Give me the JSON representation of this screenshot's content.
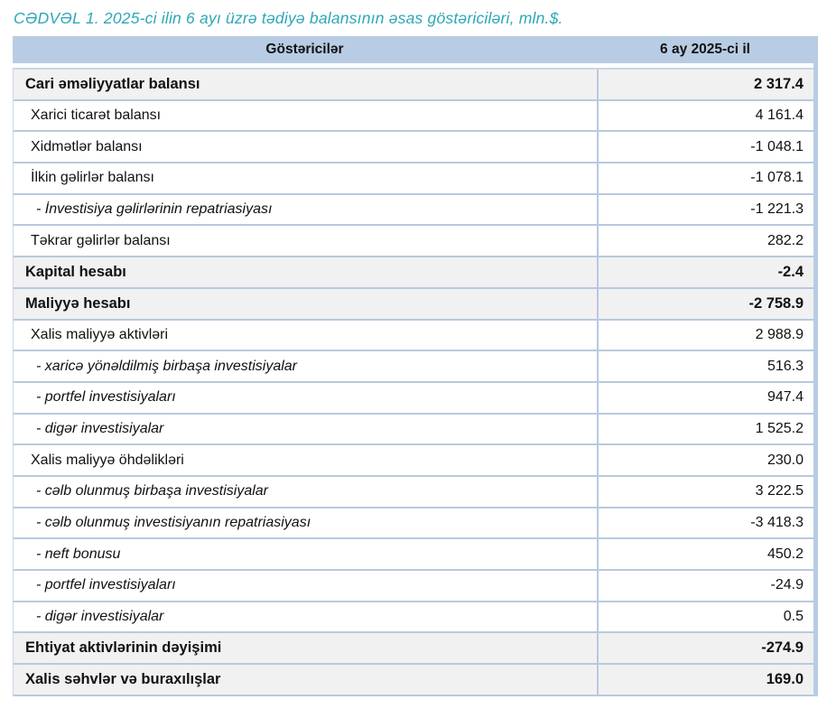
{
  "page_title": "CƏDVƏL 1. 2025-ci ilin 6 ayı üzrə tədiyə balansının əsas göstəriciləri, mln.$.",
  "colors": {
    "title_text": "#2EA7B7",
    "header_bg": "#B8CCE4",
    "shaded_row_bg": "#F1F1F1",
    "border": "#B8C9DF",
    "text": "#111111"
  },
  "table": {
    "columns": [
      "Göstəricilər",
      "6 ay 2025-ci il"
    ],
    "rows": [
      {
        "label": "Cari əməliyyatlar balansı",
        "value": "2 317.4",
        "style": "total"
      },
      {
        "label": "Xarici ticarət balansı",
        "value": "4 161.4",
        "style": "sub"
      },
      {
        "label": "Xidmətlər balansı",
        "value": "-1 048.1",
        "style": "sub"
      },
      {
        "label": "İlkin gəlirlər balansı",
        "value": "-1 078.1",
        "style": "sub"
      },
      {
        "label": "- İnvestisiya gəlirlərinin repatriasiyası",
        "value": "-1 221.3",
        "style": "detail"
      },
      {
        "label": "Təkrar gəlirlər balansı",
        "value": "282.2",
        "style": "sub"
      },
      {
        "label": "Kapital hesabı",
        "value": "-2.4",
        "style": "total"
      },
      {
        "label": "Maliyyə hesabı",
        "value": "-2 758.9",
        "style": "total"
      },
      {
        "label": "Xalis maliyyə aktivləri",
        "value": "2 988.9",
        "style": "sub"
      },
      {
        "label": "- xaricə yönəldilmiş birbaşa investisiyalar",
        "value": "516.3",
        "style": "detail"
      },
      {
        "label": "- portfel investisiyaları",
        "value": "947.4",
        "style": "detail"
      },
      {
        "label": "- digər investisiyalar",
        "value": "1 525.2",
        "style": "detail"
      },
      {
        "label": "Xalis maliyyə öhdəlikləri",
        "value": "230.0",
        "style": "sub"
      },
      {
        "label": "- cəlb olunmuş birbaşa investisiyalar",
        "value": "3 222.5",
        "style": "detail"
      },
      {
        "label": "- cəlb olunmuş investisiyanın repatriasiyası",
        "value": "-3 418.3",
        "style": "detail"
      },
      {
        "label": "- neft bonusu",
        "value": "450.2",
        "style": "detail"
      },
      {
        "label": "- portfel investisiyaları",
        "value": "-24.9",
        "style": "detail"
      },
      {
        "label": "- digər investisiyalar",
        "value": "0.5",
        "style": "detail"
      },
      {
        "label": "Ehtiyat aktivlərinin dəyişimi",
        "value": "-274.9",
        "style": "total"
      },
      {
        "label": "Xalis səhvlər və buraxılışlar",
        "value": "169.0",
        "style": "total"
      }
    ]
  },
  "chart_data": {
    "type": "table",
    "title": "CƏDVƏL 1. 2025-ci ilin 6 ayı üzrə tədiyə balansının əsas göstəriciləri, mln.$.",
    "columns": [
      "Göstəricilər",
      "6 ay 2025-ci il"
    ],
    "unit": "mln.$",
    "rows": [
      [
        "Cari əməliyyatlar balansı",
        2317.4
      ],
      [
        "Xarici ticarət balansı",
        4161.4
      ],
      [
        "Xidmətlər balansı",
        -1048.1
      ],
      [
        "İlkin gəlirlər balansı",
        -1078.1
      ],
      [
        "- İnvestisiya gəlirlərinin repatriasiyası",
        -1221.3
      ],
      [
        "Təkrar gəlirlər balansı",
        282.2
      ],
      [
        "Kapital hesabı",
        -2.4
      ],
      [
        "Maliyyə hesabı",
        -2758.9
      ],
      [
        "Xalis maliyyə aktivləri",
        2988.9
      ],
      [
        "- xaricə yönəldilmiş birbaşa investisiyalar",
        516.3
      ],
      [
        "- portfel investisiyaları",
        947.4
      ],
      [
        "- digər investisiyalar",
        1525.2
      ],
      [
        "Xalis maliyyə öhdəlikləri",
        230.0
      ],
      [
        "- cəlb olunmuş birbaşa investisiyalar",
        3222.5
      ],
      [
        "- cəlb olunmuş investisiyanın repatriasiyası",
        -3418.3
      ],
      [
        "- neft bonusu",
        450.2
      ],
      [
        "- portfel investisiyaları",
        -24.9
      ],
      [
        "- digər investisiyalar",
        0.5
      ],
      [
        "Ehtiyat aktivlərinin dəyişimi",
        -274.9
      ],
      [
        "Xalis səhvlər və buraxılışlar",
        169.0
      ]
    ]
  }
}
